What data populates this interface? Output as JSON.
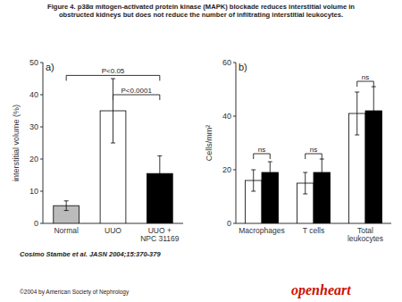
{
  "title": "Figure 4. p38α mitogen-activated protein kinase (MAPK) blockade reduces interstitial volume in\nobstructed kidneys but does not reduce the number of infiltrating interstitial leukocytes.",
  "annotations": [
    {
      "text": "Cosimo Stambe et al. JASN 2004;15:370-379"
    },
    {
      "text": "©2004 by American Society of Nephrology"
    },
    {
      "text": "openheart",
      "color": "#cc1100"
    }
  ],
  "chart_data": [
    {
      "type": "bar",
      "title": "a)",
      "categories": [
        "Normal",
        "UUO",
        "UUO +\nNPC 31169"
      ],
      "values": [
        5.5,
        35.0,
        15.5
      ],
      "errors": [
        1.5,
        10.0,
        5.5
      ],
      "colors": [
        "#bbbbbb",
        "#ffffff",
        "#000000"
      ],
      "ylabel": "interstitial volume (%)",
      "ylim": [
        0,
        50
      ],
      "yticks": [
        0,
        10,
        20,
        30,
        40,
        50
      ],
      "grid": false,
      "annotations": [
        {
          "text": "P<0.05",
          "from": "Normal",
          "to": "UUO +\nNPC 31169",
          "y": 46
        },
        {
          "text": "P<0.0001",
          "from": "UUO",
          "to": "UUO +\nNPC 31169",
          "y": 40
        }
      ]
    },
    {
      "type": "bar",
      "title": "b)",
      "categories": [
        "Macrophages",
        "T cells",
        "Total\nleukocytes"
      ],
      "series": [
        {
          "color": "#ffffff",
          "values": [
            16,
            15,
            41
          ],
          "errors": [
            4,
            4,
            8
          ]
        },
        {
          "color": "#000000",
          "values": [
            19,
            19,
            42
          ],
          "errors": [
            4,
            5,
            9
          ]
        }
      ],
      "ylabel": "Cells/mm²",
      "ylim": [
        0,
        60
      ],
      "yticks": [
        0,
        20,
        40,
        60
      ],
      "grid": false,
      "annotations": [
        {
          "text": "ns",
          "category": "Macrophages",
          "y": 26
        },
        {
          "text": "ns",
          "category": "T cells",
          "y": 26
        },
        {
          "text": "ns",
          "category": "Total\nleukocytes",
          "y": 53
        }
      ]
    }
  ]
}
